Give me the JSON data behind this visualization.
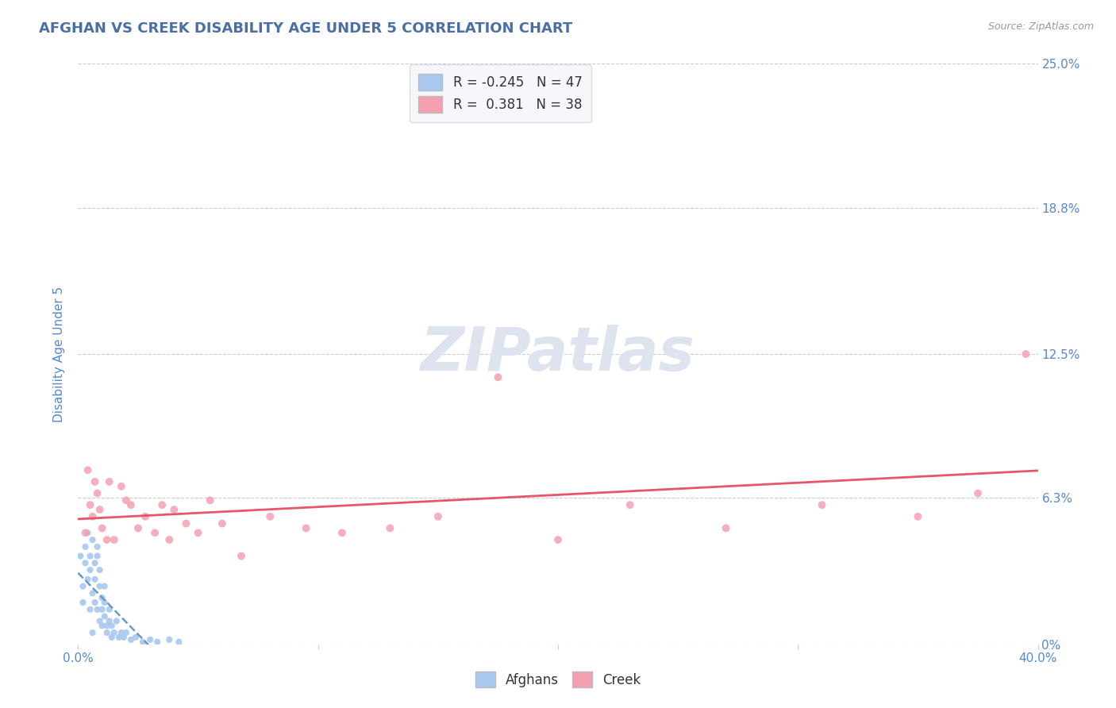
{
  "title": "AFGHAN VS CREEK DISABILITY AGE UNDER 5 CORRELATION CHART",
  "source": "Source: ZipAtlas.com",
  "ylabel": "Disability Age Under 5",
  "xlim": [
    0.0,
    0.4
  ],
  "ylim": [
    0.0,
    0.25
  ],
  "xticks": [
    0.0,
    0.1,
    0.2,
    0.3,
    0.4
  ],
  "xtick_labels": [
    "0.0%",
    "",
    "",
    "",
    "40.0%"
  ],
  "yticks": [
    0.0,
    0.063,
    0.125,
    0.188,
    0.25
  ],
  "ytick_labels": [
    "0%",
    "6.3%",
    "12.5%",
    "18.8%",
    "25.0%"
  ],
  "afghan_R": -0.245,
  "afghan_N": 47,
  "creek_R": 0.381,
  "creek_N": 38,
  "afghan_color": "#a8c8f0",
  "creek_color": "#f4a0b0",
  "afghan_line_color": "#6699cc",
  "creek_line_color": "#e8546a",
  "background_color": "#ffffff",
  "grid_color": "#cccccc",
  "title_color": "#4a6fa5",
  "tick_label_color": "#5588cc",
  "legend_box_color": "#f5f7fa",
  "watermark_color": "#dde4f0",
  "afghan_points": [
    [
      0.001,
      0.038
    ],
    [
      0.002,
      0.025
    ],
    [
      0.002,
      0.018
    ],
    [
      0.003,
      0.042
    ],
    [
      0.003,
      0.035
    ],
    [
      0.004,
      0.028
    ],
    [
      0.004,
      0.048
    ],
    [
      0.005,
      0.032
    ],
    [
      0.005,
      0.015
    ],
    [
      0.005,
      0.038
    ],
    [
      0.006,
      0.045
    ],
    [
      0.006,
      0.022
    ],
    [
      0.006,
      0.005
    ],
    [
      0.007,
      0.018
    ],
    [
      0.007,
      0.035
    ],
    [
      0.007,
      0.028
    ],
    [
      0.008,
      0.042
    ],
    [
      0.008,
      0.015
    ],
    [
      0.008,
      0.038
    ],
    [
      0.009,
      0.025
    ],
    [
      0.009,
      0.01
    ],
    [
      0.009,
      0.032
    ],
    [
      0.01,
      0.02
    ],
    [
      0.01,
      0.008
    ],
    [
      0.01,
      0.015
    ],
    [
      0.011,
      0.025
    ],
    [
      0.011,
      0.018
    ],
    [
      0.011,
      0.012
    ],
    [
      0.012,
      0.008
    ],
    [
      0.012,
      0.005
    ],
    [
      0.013,
      0.01
    ],
    [
      0.013,
      0.015
    ],
    [
      0.014,
      0.008
    ],
    [
      0.014,
      0.003
    ],
    [
      0.015,
      0.005
    ],
    [
      0.016,
      0.01
    ],
    [
      0.017,
      0.003
    ],
    [
      0.018,
      0.005
    ],
    [
      0.019,
      0.003
    ],
    [
      0.02,
      0.005
    ],
    [
      0.022,
      0.002
    ],
    [
      0.024,
      0.003
    ],
    [
      0.027,
      0.001
    ],
    [
      0.03,
      0.002
    ],
    [
      0.033,
      0.001
    ],
    [
      0.038,
      0.002
    ],
    [
      0.042,
      0.001
    ]
  ],
  "creek_points": [
    [
      0.003,
      0.048
    ],
    [
      0.004,
      0.075
    ],
    [
      0.005,
      0.06
    ],
    [
      0.006,
      0.055
    ],
    [
      0.007,
      0.07
    ],
    [
      0.008,
      0.065
    ],
    [
      0.009,
      0.058
    ],
    [
      0.01,
      0.05
    ],
    [
      0.012,
      0.045
    ],
    [
      0.013,
      0.07
    ],
    [
      0.015,
      0.045
    ],
    [
      0.018,
      0.068
    ],
    [
      0.02,
      0.062
    ],
    [
      0.022,
      0.06
    ],
    [
      0.025,
      0.05
    ],
    [
      0.028,
      0.055
    ],
    [
      0.032,
      0.048
    ],
    [
      0.035,
      0.06
    ],
    [
      0.038,
      0.045
    ],
    [
      0.04,
      0.058
    ],
    [
      0.045,
      0.052
    ],
    [
      0.05,
      0.048
    ],
    [
      0.055,
      0.062
    ],
    [
      0.06,
      0.052
    ],
    [
      0.068,
      0.038
    ],
    [
      0.08,
      0.055
    ],
    [
      0.095,
      0.05
    ],
    [
      0.11,
      0.048
    ],
    [
      0.13,
      0.05
    ],
    [
      0.15,
      0.055
    ],
    [
      0.175,
      0.115
    ],
    [
      0.2,
      0.045
    ],
    [
      0.23,
      0.06
    ],
    [
      0.27,
      0.05
    ],
    [
      0.31,
      0.06
    ],
    [
      0.35,
      0.055
    ],
    [
      0.375,
      0.065
    ],
    [
      0.395,
      0.125
    ]
  ]
}
